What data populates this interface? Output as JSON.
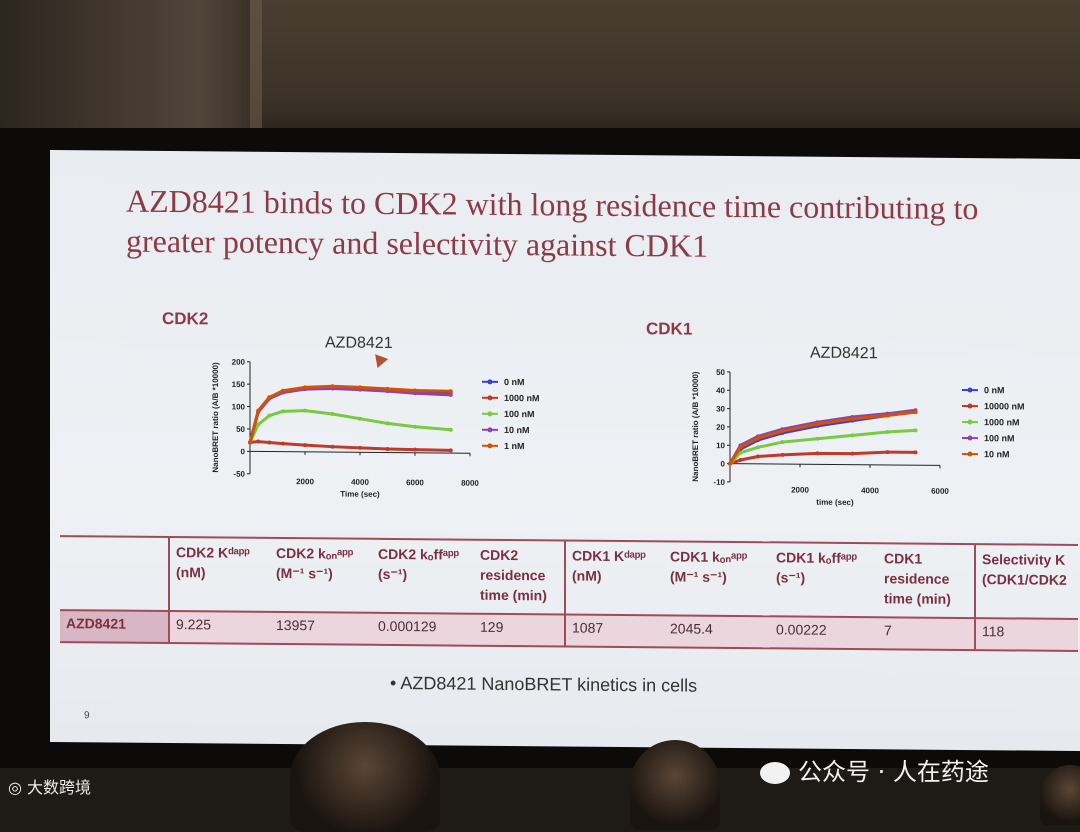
{
  "slide": {
    "title": "AZD8421 binds to CDK2 with long residence time contributing to greater potency and selectivity against CDK1",
    "page_number": "9",
    "bullet": "AZD8421 NanoBRET kinetics in cells"
  },
  "left_panel": {
    "label": "CDK2",
    "chart_title": "AZD8421"
  },
  "right_panel": {
    "label": "CDK1",
    "chart_title": "AZD8421"
  },
  "chart_data": [
    {
      "type": "line",
      "title": "AZD8421",
      "xlabel": "Time (sec)",
      "ylabel": "NanoBRET ratio (A/B *10000)",
      "xlim": [
        0,
        8000
      ],
      "ylim": [
        -50,
        200
      ],
      "xticks": [
        2000,
        4000,
        6000,
        8000
      ],
      "yticks": [
        -50,
        0,
        50,
        100,
        150,
        200
      ],
      "legend": "right",
      "series": [
        {
          "name": "0 nM",
          "color": "#3b3fd0",
          "x": [
            0,
            300,
            700,
            1200,
            2000,
            3000,
            4000,
            5000,
            6000,
            7300
          ],
          "y": [
            20,
            90,
            120,
            135,
            143,
            145,
            143,
            140,
            137,
            135
          ]
        },
        {
          "name": "1000 nM",
          "color": "#c0392b",
          "x": [
            0,
            300,
            700,
            1200,
            2000,
            3000,
            4000,
            5000,
            6000,
            7300
          ],
          "y": [
            20,
            22,
            20,
            18,
            15,
            12,
            10,
            8,
            7,
            6
          ]
        },
        {
          "name": "100 nM",
          "color": "#7ac943",
          "x": [
            0,
            300,
            700,
            1200,
            2000,
            3000,
            4000,
            5000,
            6000,
            7300
          ],
          "y": [
            20,
            60,
            80,
            90,
            92,
            85,
            75,
            65,
            58,
            52
          ]
        },
        {
          "name": "10 nM",
          "color": "#8e44ad",
          "x": [
            0,
            300,
            700,
            1200,
            2000,
            3000,
            4000,
            5000,
            6000,
            7300
          ],
          "y": [
            20,
            88,
            118,
            132,
            140,
            142,
            140,
            137,
            133,
            130
          ]
        },
        {
          "name": "1 nM",
          "color": "#d35400",
          "x": [
            0,
            300,
            700,
            1200,
            2000,
            3000,
            4000,
            5000,
            6000,
            7300
          ],
          "y": [
            20,
            91,
            121,
            136,
            144,
            147,
            145,
            142,
            139,
            138
          ]
        }
      ]
    },
    {
      "type": "line",
      "title": "AZD8421",
      "xlabel": "time (sec)",
      "ylabel": "NanoBRET ratio (A/B *10000)",
      "xlim": [
        0,
        6000
      ],
      "ylim": [
        -10,
        50
      ],
      "xticks": [
        2000,
        4000,
        6000
      ],
      "yticks": [
        -10,
        0,
        10,
        20,
        30,
        40,
        50
      ],
      "legend": "right",
      "series": [
        {
          "name": "0 nM",
          "color": "#3b3fd0",
          "x": [
            0,
            300,
            800,
            1500,
            2500,
            3500,
            4500,
            5300
          ],
          "y": [
            0,
            8,
            13,
            17,
            21,
            24,
            27,
            29
          ]
        },
        {
          "name": "10000 nM",
          "color": "#c0392b",
          "x": [
            0,
            300,
            800,
            1500,
            2500,
            3500,
            4500,
            5300
          ],
          "y": [
            0,
            2,
            4,
            5,
            6,
            6,
            7,
            7
          ]
        },
        {
          "name": "1000 nM",
          "color": "#7ac943",
          "x": [
            0,
            300,
            800,
            1500,
            2500,
            3500,
            4500,
            5300
          ],
          "y": [
            0,
            6,
            9,
            12,
            14,
            16,
            18,
            19
          ]
        },
        {
          "name": "100 nM",
          "color": "#8e44ad",
          "x": [
            0,
            300,
            800,
            1500,
            2500,
            3500,
            4500,
            5300
          ],
          "y": [
            0,
            10,
            15,
            19,
            23,
            26,
            28,
            30
          ]
        },
        {
          "name": "10 nM",
          "color": "#d35400",
          "x": [
            0,
            300,
            800,
            1500,
            2500,
            3500,
            4500,
            5300
          ],
          "y": [
            0,
            9,
            14,
            18,
            22,
            25,
            27,
            29
          ]
        }
      ]
    }
  ],
  "table": {
    "headers": [
      "",
      "CDK2 Kᵈᵃᵖᵖ (nM)",
      "CDK2 kₒₙᵃᵖᵖ (M⁻¹ s⁻¹)",
      "CDK2 kₒffᵃᵖᵖ (s⁻¹)",
      "CDK2 residence time (min)",
      "CDK1 Kᵈᵃᵖᵖ (nM)",
      "CDK1 kₒₙᵃᵖᵖ (M⁻¹ s⁻¹)",
      "CDK1 kₒffᵃᵖᵖ (s⁻¹)",
      "CDK1 residence time (min)",
      "Selectivity K (CDK1/CDK2"
    ],
    "row_label": "AZD8421",
    "values": [
      "9.225",
      "13957",
      "0.000129",
      "129",
      "1087",
      "2045.4",
      "0.00222",
      "7",
      "118"
    ]
  },
  "watermark": {
    "text": "公众号 · 人在药途",
    "logo_text": "大数跨境"
  }
}
